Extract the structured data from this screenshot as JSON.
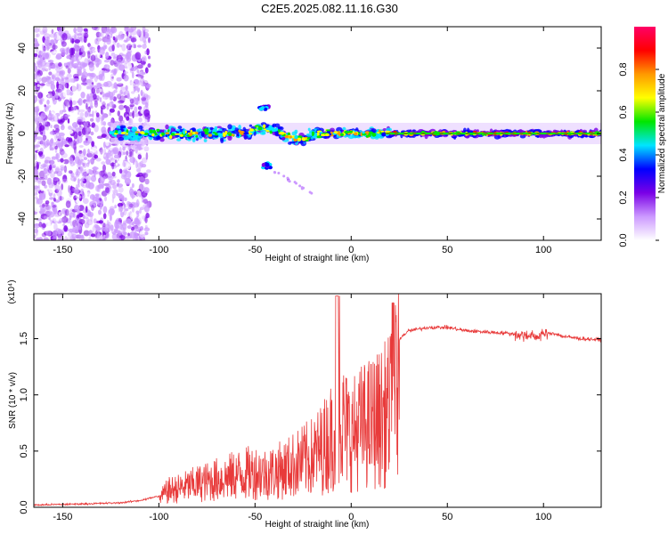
{
  "figure": {
    "title": "C2E5.2025.082.11.16.G30"
  },
  "colorbar": {
    "label": "Normalized spectral amplitude",
    "ticks": [
      "0.0",
      "0.2",
      "0.4",
      "0.6",
      "0.8"
    ],
    "range": [
      0,
      1
    ],
    "colors": [
      "#ffffff",
      "#cc99ff",
      "#7a00e6",
      "#0000ff",
      "#00e5ff",
      "#00e600",
      "#ffff00",
      "#ff9900",
      "#ff0000",
      "#ff0066"
    ]
  },
  "chart_data": [
    {
      "type": "heatmap",
      "title": "",
      "xlabel": "Height of straight line (km)",
      "ylabel": "Frequency (Hz)",
      "xlim": [
        -165,
        130
      ],
      "ylim": [
        -50,
        50
      ],
      "xticks": [
        -150,
        -100,
        -50,
        0,
        50,
        100
      ],
      "yticks": [
        -40,
        -20,
        0,
        20,
        40
      ],
      "features": {
        "noise_region_x": [
          -165,
          -105
        ],
        "signal_band_start_x": -125,
        "signal_center_freq": 0,
        "peak_cluster": {
          "x": -45,
          "y": 12
        },
        "secondary_cluster": {
          "x": -44,
          "y": -15
        },
        "streak_x_end": -20
      }
    },
    {
      "type": "line",
      "title": "",
      "xlabel": "Height of straight line (km)",
      "ylabel": "SNR (10 * v/v)",
      "scale_label": "(x10⁴)",
      "xlim": [
        -165,
        130
      ],
      "ylim": [
        0,
        1.9
      ],
      "xticks": [
        -150,
        -100,
        -50,
        0,
        50,
        100
      ],
      "yticks": [
        "0.0",
        "0.5",
        "1.0",
        "1.5"
      ],
      "series": [
        {
          "color": "#e83a3a",
          "x": [
            -165,
            -140,
            -120,
            -110,
            -100,
            -95,
            -90,
            -85,
            -80,
            -75,
            -70,
            -65,
            -60,
            -55,
            -50,
            -45,
            -40,
            -35,
            -30,
            -25,
            -20,
            -15,
            -10,
            -7,
            -5,
            -2,
            0,
            5,
            10,
            15,
            20,
            22,
            25,
            30,
            40,
            50,
            60,
            70,
            80,
            90,
            95,
            100,
            105,
            110,
            120,
            130
          ],
          "y": [
            0.02,
            0.03,
            0.04,
            0.06,
            0.1,
            0.2,
            0.22,
            0.25,
            0.28,
            0.3,
            0.33,
            0.35,
            0.38,
            0.4,
            0.42,
            0.4,
            0.42,
            0.45,
            0.5,
            0.55,
            0.6,
            0.7,
            0.85,
            1.1,
            1.0,
            0.9,
            0.85,
            0.95,
            1.0,
            1.05,
            1.15,
            1.3,
            1.5,
            1.57,
            1.6,
            1.6,
            1.57,
            1.56,
            1.55,
            1.53,
            1.52,
            1.54,
            1.55,
            1.52,
            1.5,
            1.49
          ]
        }
      ]
    }
  ]
}
